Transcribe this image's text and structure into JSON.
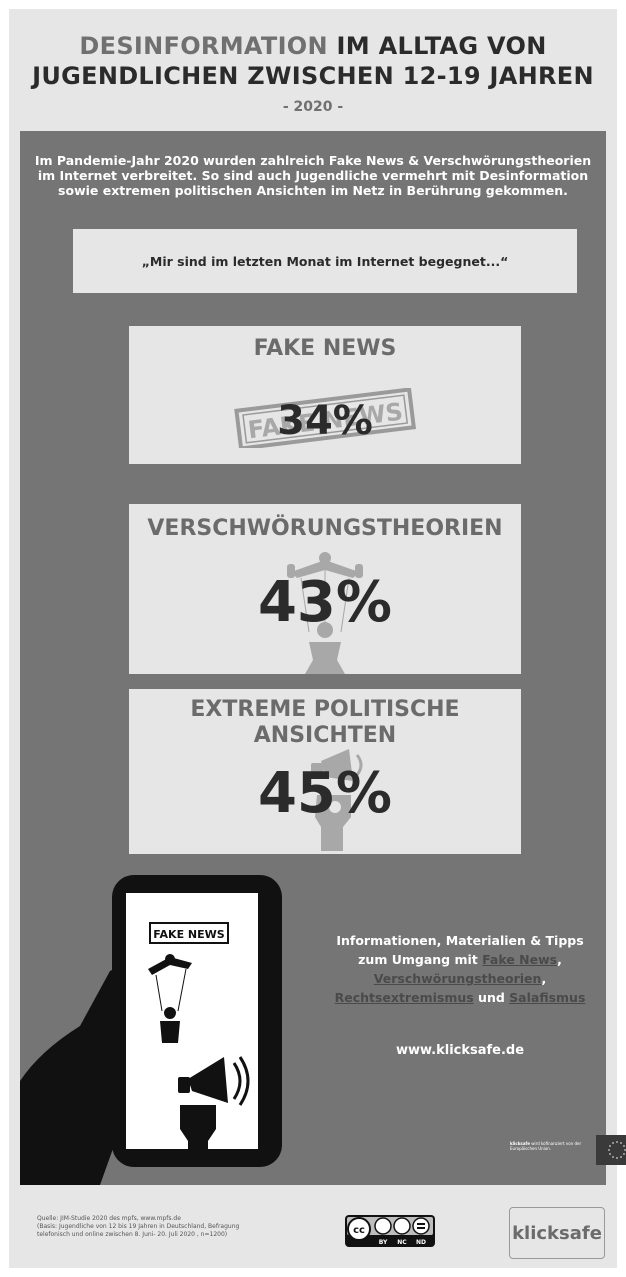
{
  "header": {
    "title_highlight": "DESINFORMATION",
    "title_line1_rest": " IM ALLTAG VON",
    "title_line2": "JUGENDLICHEN ZWISCHEN 12-19 JAHREN",
    "year": "- 2020 -"
  },
  "intro": {
    "line1": "Im Pandemie-Jahr 2020 wurden zahlreich Fake News & Verschwörungstheorien",
    "line2": "im Internet verbreitet. So sind auch Jugendliche vermehrt mit Desinformation",
    "line3": "sowie extremen politischen Ansichten im Netz in Berührung gekommen."
  },
  "quote": "„Mir sind im letzten Monat im Internet begegnet...“",
  "stats": [
    {
      "title": "FAKE NEWS",
      "value": "34%",
      "icon": "fake-news-stamp-icon",
      "stamp_text": "FAKE NEWS"
    },
    {
      "title": "VERSCHWÖRUNGSTHEORIEN",
      "value": "43%",
      "icon": "puppet-icon"
    },
    {
      "title_line1": "EXTREME POLITISCHE",
      "title_line2": "ANSICHTEN",
      "value": "45%",
      "icon": "megaphone-fist-icon"
    }
  ],
  "phone": {
    "label": "FAKE NEWS",
    "icons": [
      "puppet-icon",
      "megaphone-icon",
      "raised-fist-icon"
    ]
  },
  "info": {
    "line1": "Informationen, Materialien & Tipps",
    "line2_prefix": "zum Umgang mit ",
    "link_fake_news": "Fake News",
    "comma1": ",",
    "link_verschwoerung": "Verschwörungstheorien",
    "comma2": ",",
    "link_rechtsextremismus": "Rechtsextremismus",
    "und": " und ",
    "link_salafismus": "Salafismus",
    "url": "www.klicksafe.de"
  },
  "eu": {
    "text_bold": "klicksafe",
    "text_rest": " wird kofinanziert von der Europäischen Union.",
    "icon": "eu-flag-icon"
  },
  "footer": {
    "source_line1": "Quelle: JIM-Studie 2020 des mpfs, www.mpfs.de",
    "source_line2": "(Basis: Jugendliche von 12 bis 19 Jahren in Deutschland, Befragung",
    "source_line3": "telefonisch und online zwischen 8. Juni- 20. Juli 2020 , n=1200)",
    "cc_labels": [
      "BY",
      "NC",
      "ND"
    ],
    "logo": "klicksafe"
  }
}
